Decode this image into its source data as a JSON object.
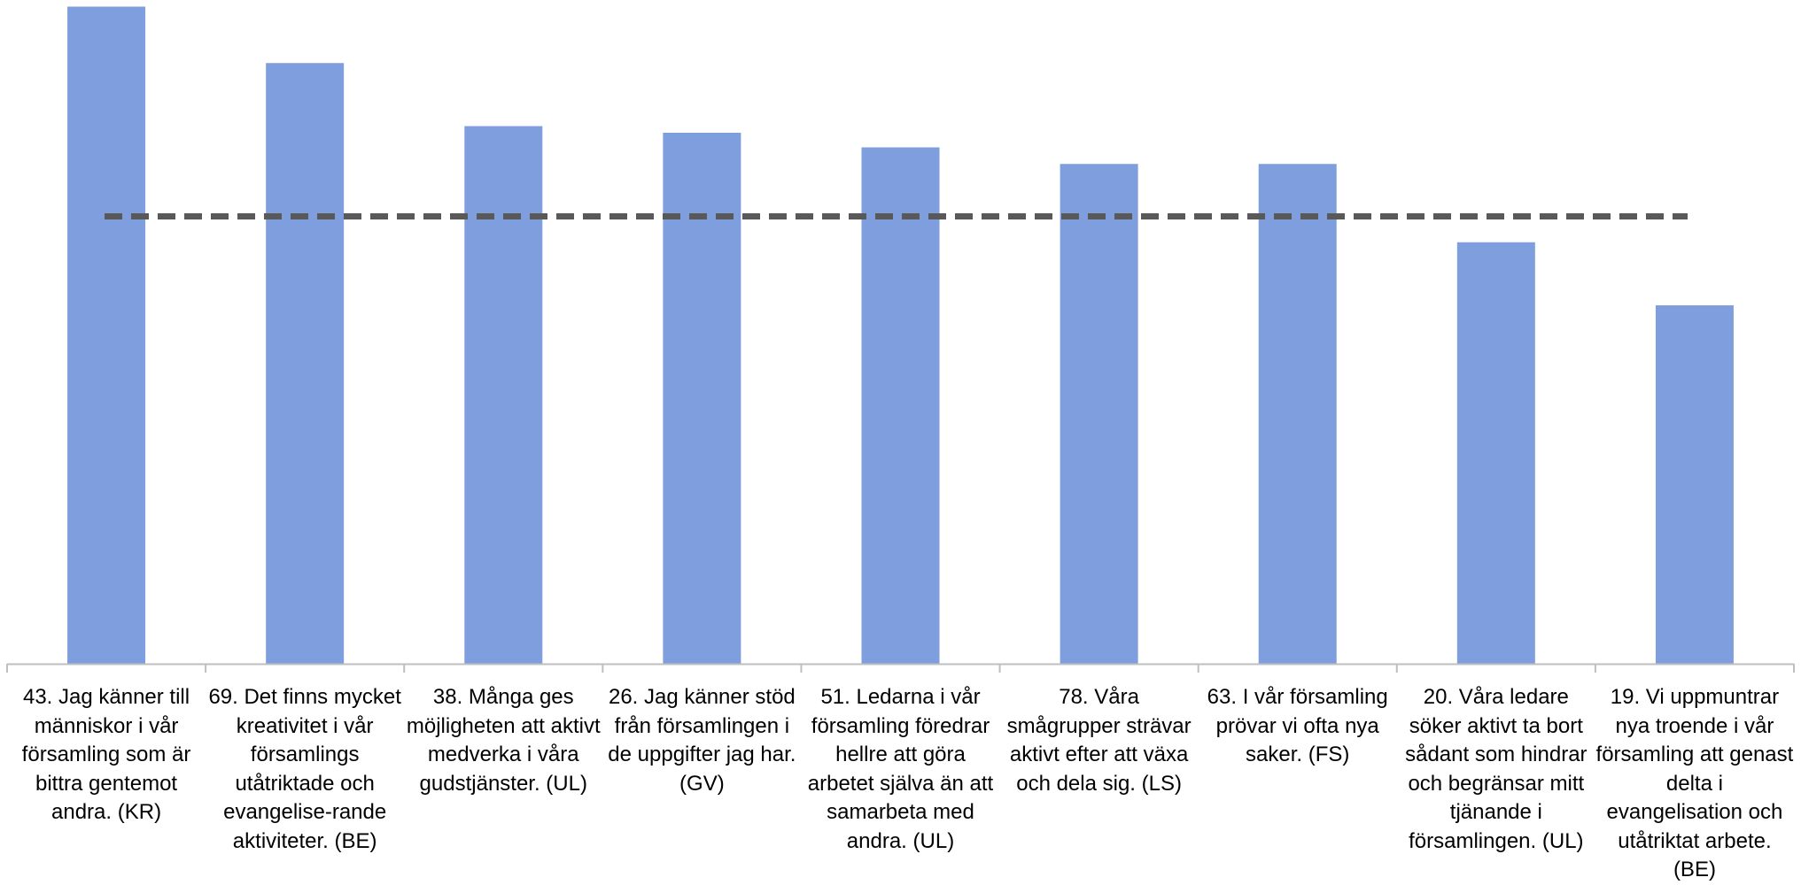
{
  "chart_data": {
    "type": "bar",
    "categories": [
      "43. Jag känner till människor i vår församling som är bittra gentemot andra.  (KR)",
      "69. Det finns mycket kreativitet i vår församlings utåtriktade och evangelise-rande aktiviteter.  (BE)",
      "38. Många ges möjligheten att aktivt medverka i våra gudstjänster.  (UL)",
      "26. Jag känner stöd från församlingen i de uppgifter jag har.  (GV)",
      "51. Ledarna i vår församling föredrar hellre att göra arbetet själva än att samarbeta med andra.   (UL)",
      "78. Våra smågrupper strävar aktivt efter att växa och dela sig.  (LS)",
      "63. I vår församling prövar vi ofta nya saker.  (FS)",
      "20. Våra ledare söker aktivt ta bort sådant som hindrar och begränsar mitt tjänande i församlingen.  (UL)",
      "19. Vi uppmuntrar nya troende i vår församling att genast delta i evangelisation och utåtriktat arbete.  (BE)"
    ],
    "series": [
      {
        "values": [
          99,
          90.5,
          81,
          80,
          77.8,
          75.3,
          75.3,
          63.5,
          54
        ]
      },
      {
        "type": "line",
        "style": "dashed",
        "values": [
          67.4,
          67.4,
          67.4,
          67.4,
          67.4,
          67.4,
          67.4,
          67.4,
          67.4
        ]
      }
    ],
    "ylim": [
      0,
      100
    ],
    "grid": false,
    "legend": "none",
    "colors": {
      "bar": "#7F9EDE",
      "line": "#595959",
      "axis": "#BFBFBF"
    }
  }
}
